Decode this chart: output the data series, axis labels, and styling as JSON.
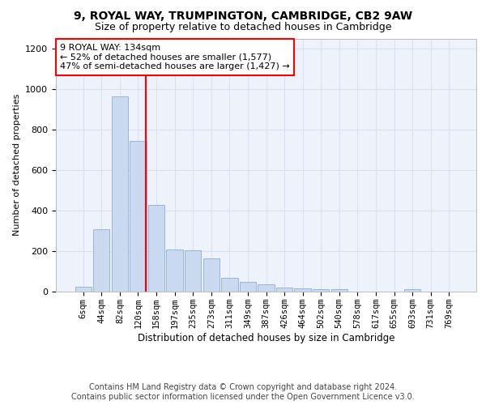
{
  "title_line1": "9, ROYAL WAY, TRUMPINGTON, CAMBRIDGE, CB2 9AW",
  "title_line2": "Size of property relative to detached houses in Cambridge",
  "xlabel": "Distribution of detached houses by size in Cambridge",
  "ylabel": "Number of detached properties",
  "bin_labels": [
    "6sqm",
    "44sqm",
    "82sqm",
    "120sqm",
    "158sqm",
    "197sqm",
    "235sqm",
    "273sqm",
    "311sqm",
    "349sqm",
    "387sqm",
    "426sqm",
    "464sqm",
    "502sqm",
    "540sqm",
    "578sqm",
    "617sqm",
    "655sqm",
    "693sqm",
    "731sqm",
    "769sqm"
  ],
  "bar_values": [
    25,
    310,
    965,
    745,
    430,
    210,
    205,
    165,
    70,
    48,
    35,
    22,
    15,
    12,
    12,
    0,
    0,
    0,
    12,
    0,
    0
  ],
  "bar_color": "#c9d9f0",
  "bar_edge_color": "#7ca3d0",
  "vline_color": "red",
  "vline_pos": 3.425,
  "annotation_text": "9 ROYAL WAY: 134sqm\n← 52% of detached houses are smaller (1,577)\n47% of semi-detached houses are larger (1,427) →",
  "annotation_box_color": "white",
  "annotation_box_edge_color": "red",
  "ylim": [
    0,
    1250
  ],
  "yticks": [
    0,
    200,
    400,
    600,
    800,
    1000,
    1200
  ],
  "grid_color": "#d8dff0",
  "background_color": "#eef2fb",
  "footer_line1": "Contains HM Land Registry data © Crown copyright and database right 2024.",
  "footer_line2": "Contains public sector information licensed under the Open Government Licence v3.0.",
  "title_fontsize": 10,
  "subtitle_fontsize": 9,
  "annotation_fontsize": 8,
  "footer_fontsize": 7,
  "ylabel_fontsize": 8,
  "xlabel_fontsize": 8.5,
  "tick_fontsize": 7.5,
  "ytick_fontsize": 8
}
